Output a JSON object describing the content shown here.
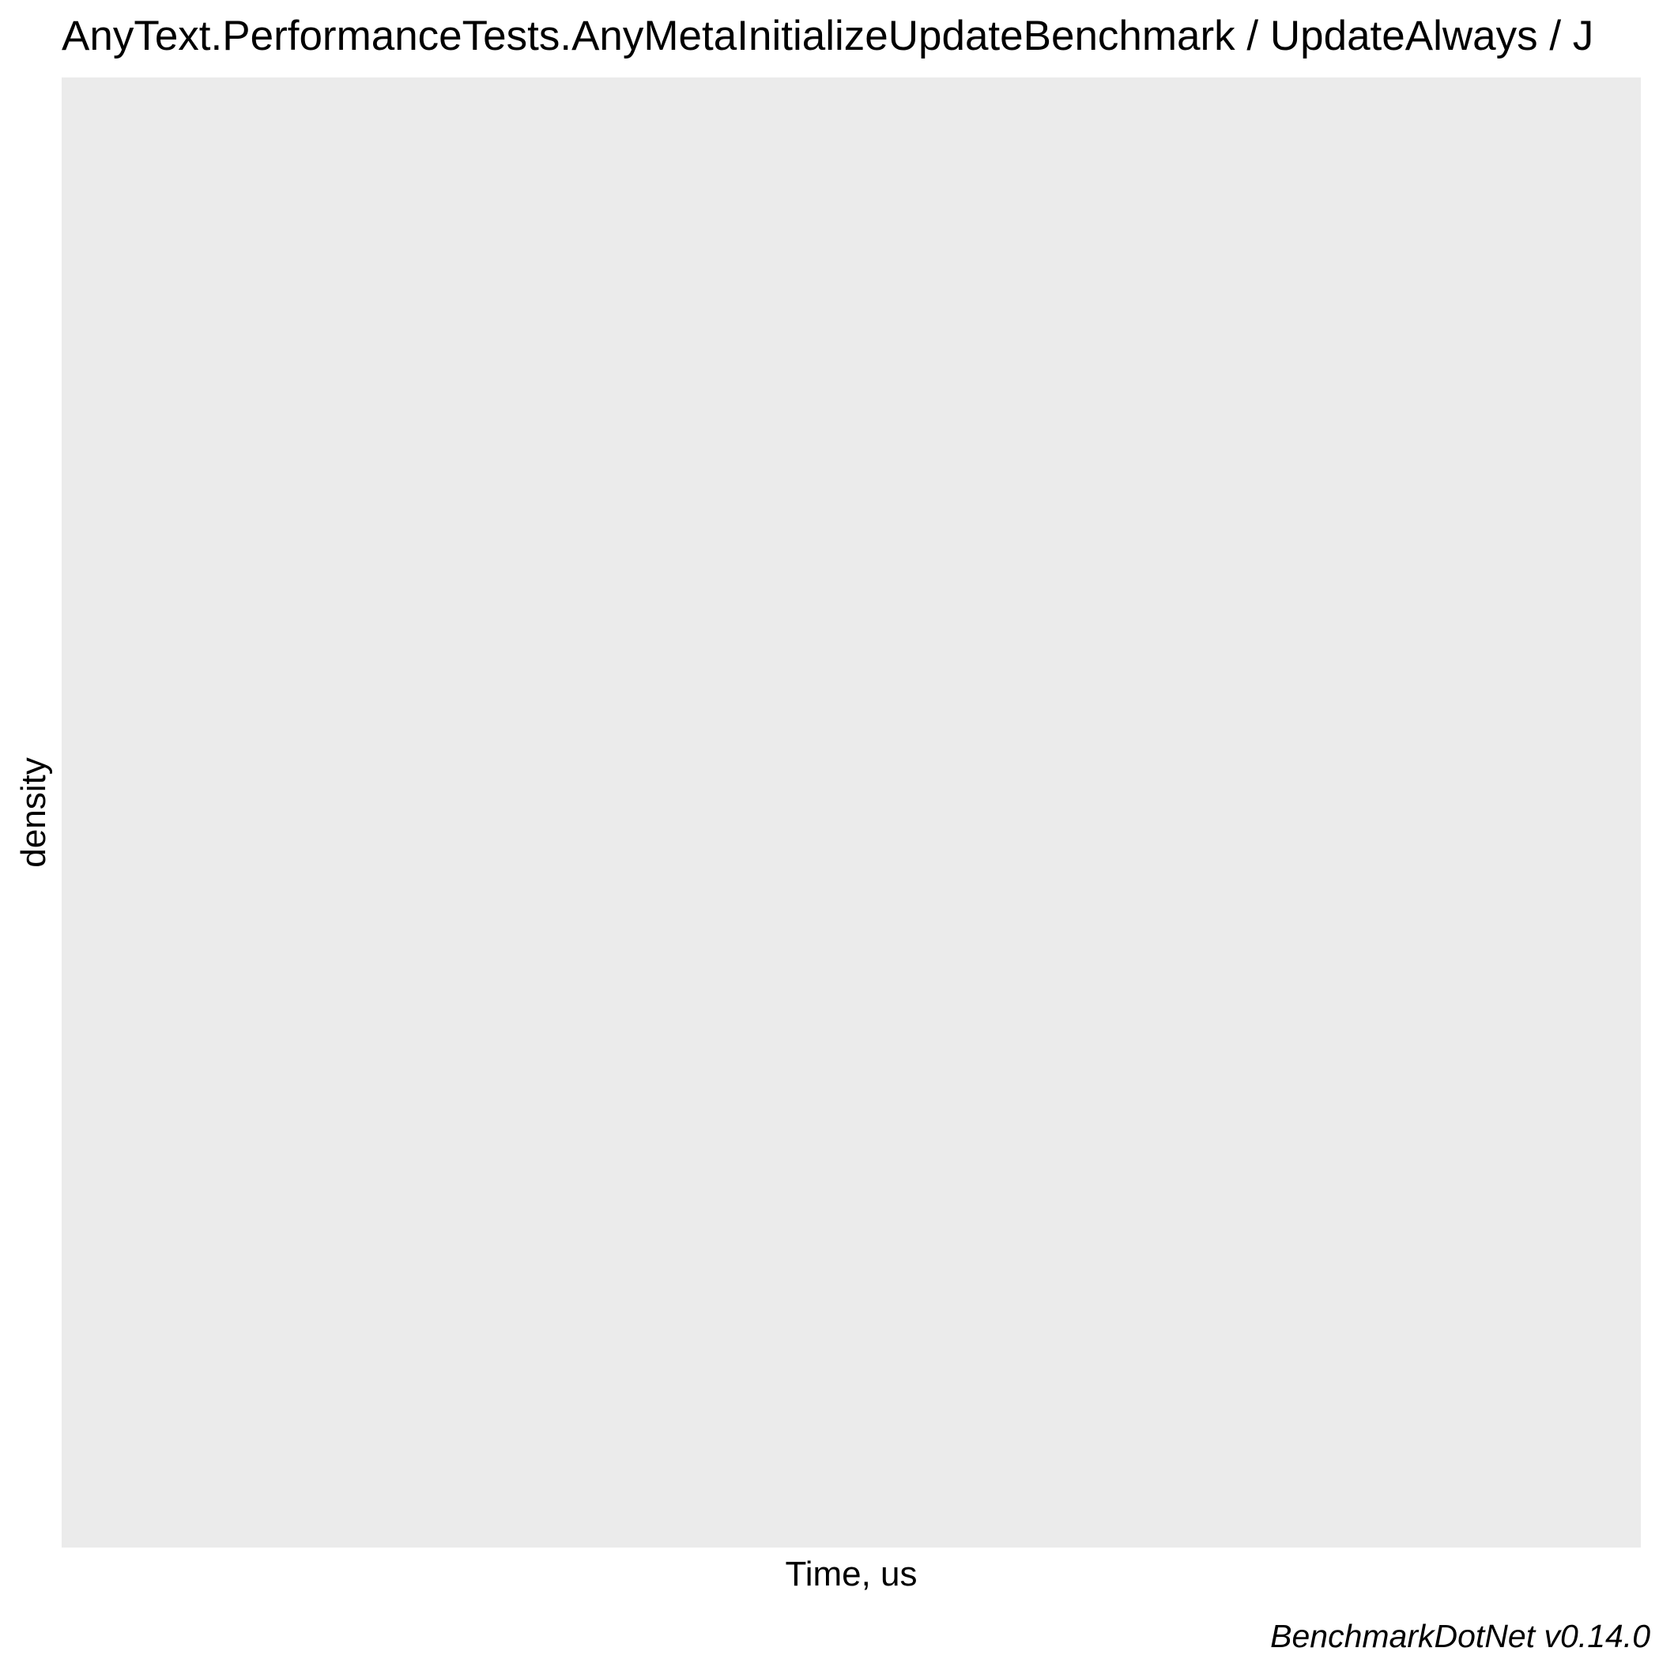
{
  "chart_data": {
    "type": "area",
    "title": "AnyText.PerformanceTests.AnyMetaInitializeUpdateBenchmark / UpdateAlways / J",
    "xlabel": "Time, us",
    "ylabel": "density",
    "caption": "BenchmarkDotNet v0.14.0",
    "series": [],
    "grid": false,
    "legend": "none"
  },
  "colors": {
    "panel_background": "#ebebeb",
    "page_background": "#ffffff",
    "text": "#000000"
  }
}
